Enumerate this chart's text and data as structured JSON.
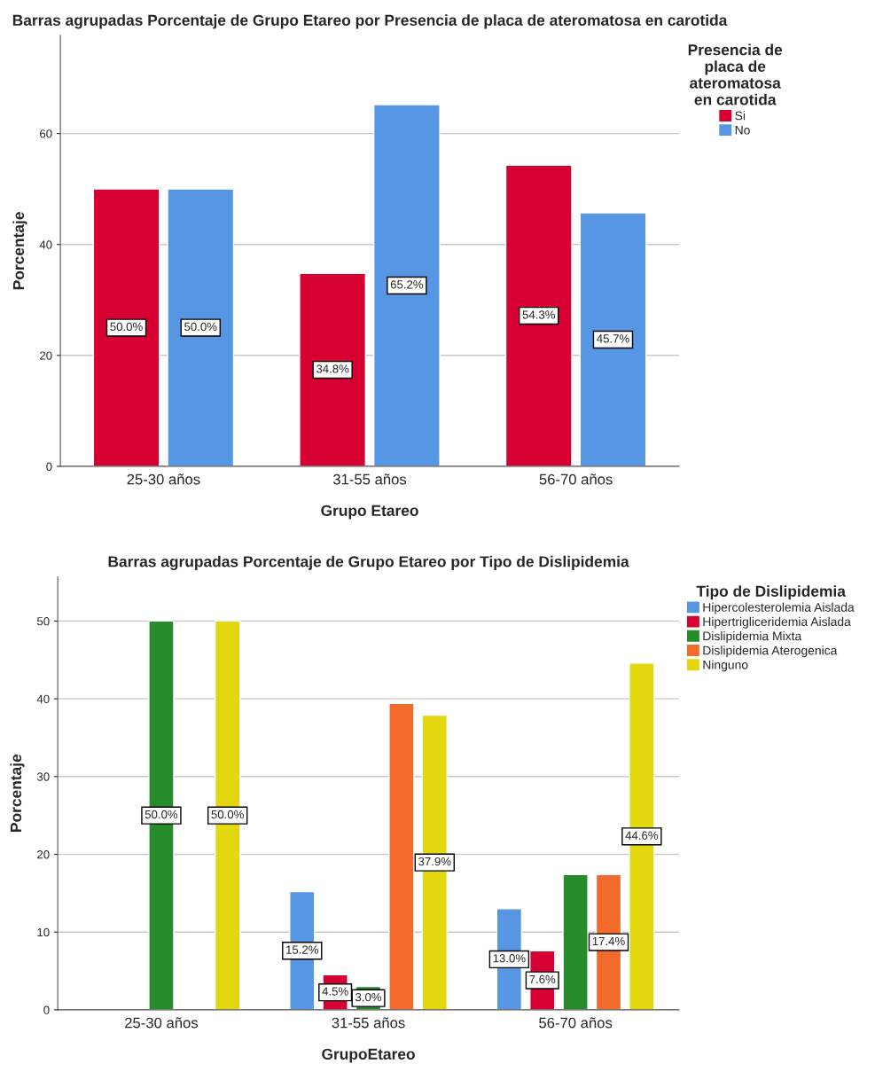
{
  "chart_data": [
    {
      "type": "bar",
      "title": "Barras agrupadas Porcentaje de Grupo Etareo por Presencia de placa de ateromatosa en carotida",
      "xlabel": "Grupo Etareo",
      "ylabel": "Porcentaje",
      "legend_title": "Presencia de\nplaca de\nateromatosa\nen carotida",
      "categories": [
        "25-30 años",
        "31-55 años",
        "56-70 años"
      ],
      "ylim": [
        0,
        77.7
      ],
      "yticks": [
        0,
        20,
        40,
        60
      ],
      "grid": "y",
      "legend": "right",
      "series": [
        {
          "name": "Si",
          "color": "#d60032",
          "values": [
            50.0,
            34.8,
            54.3
          ],
          "value_labels": [
            "50.0%",
            "34.8%",
            "54.3%"
          ]
        },
        {
          "name": "No",
          "color": "#5696e3",
          "values": [
            50.0,
            65.2,
            45.7
          ],
          "value_labels": [
            "50.0%",
            "65.2%",
            "45.7%"
          ]
        }
      ]
    },
    {
      "type": "bar",
      "title": "Barras agrupadas Porcentaje de Grupo Etareo por Tipo de Dislipidemia",
      "xlabel": "GrupoEtareo",
      "ylabel": "Porcentaje",
      "legend_title": "Tipo de Dislipidemia",
      "categories": [
        "25-30 años",
        "31-55 años",
        "56-70 años"
      ],
      "ylim": [
        0,
        55.7
      ],
      "yticks": [
        0,
        10,
        20,
        30,
        40,
        50
      ],
      "grid": "y",
      "legend": "right",
      "series": [
        {
          "name": "Hipercolesterolemia Aislada",
          "color": "#5696e3",
          "values": [
            null,
            15.2,
            13.0
          ],
          "value_labels": [
            null,
            "15.2%",
            "13.0%"
          ]
        },
        {
          "name": "Hipertrigliceridemia Aislada",
          "color": "#d60032",
          "values": [
            null,
            4.5,
            7.6
          ],
          "value_labels": [
            null,
            "4.5%",
            "7.6%"
          ]
        },
        {
          "name": "Dislipidemia Mixta",
          "color": "#278a2b",
          "values": [
            50.0,
            3.0,
            17.4
          ],
          "value_labels": [
            "50.0%",
            "3.0%",
            null
          ]
        },
        {
          "name": "Dislipidemia Aterogenica",
          "color": "#f26a2c",
          "values": [
            null,
            39.4,
            17.4
          ],
          "value_labels": [
            null,
            null,
            "17.4%"
          ]
        },
        {
          "name": "Ninguno",
          "color": "#e3d70f",
          "values": [
            50.0,
            37.9,
            44.6
          ],
          "value_labels": [
            "50.0%",
            "37.9%",
            "44.6%"
          ]
        }
      ]
    }
  ]
}
